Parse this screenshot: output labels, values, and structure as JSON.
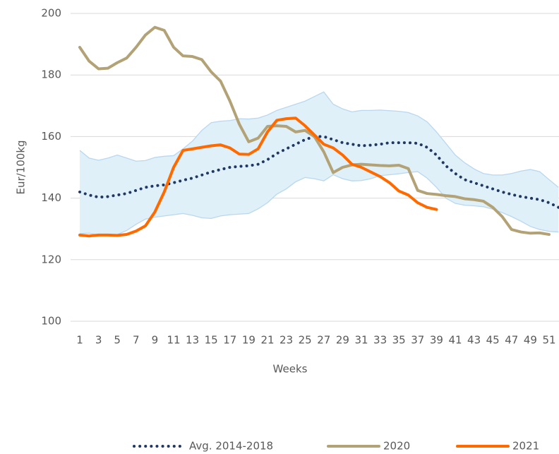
{
  "chart_data": {
    "type": "line",
    "y_label": "Eur/100kg",
    "x_label": "Weeks",
    "categories": [
      1,
      null,
      3,
      null,
      5,
      null,
      7,
      null,
      9,
      null,
      11,
      null,
      13,
      null,
      15,
      null,
      17,
      null,
      19,
      null,
      21,
      null,
      23,
      null,
      25,
      null,
      27,
      null,
      29,
      null,
      31,
      null,
      33,
      null,
      35,
      null,
      37,
      null,
      39,
      null,
      41,
      null,
      43,
      null,
      45,
      null,
      47,
      null,
      49,
      null,
      51,
      null
    ],
    "ylim": [
      100,
      200
    ],
    "yticks": [
      100,
      120,
      140,
      160,
      180,
      200
    ],
    "grid": true,
    "legend": "bottom",
    "band": {
      "color": "#dff0f8",
      "edge_color": "#b9d7ef",
      "upper": [
        155.5,
        153,
        152.3,
        153,
        154,
        153,
        152,
        152.2,
        153.2,
        153.6,
        153.8,
        156,
        158.5,
        162,
        164.5,
        165,
        165.2,
        165.8,
        165.7,
        166,
        167,
        168.5,
        169.5,
        170.5,
        171.5,
        173,
        174.5,
        170.5,
        169,
        168,
        168.5,
        168.5,
        168.6,
        168.4,
        168.2,
        167.8,
        166.7,
        164.8,
        161.5,
        157.8,
        154,
        151.5,
        149.5,
        148,
        147.5,
        147.5,
        148,
        148.8,
        149.3,
        148.6,
        146,
        143.5
      ],
      "lower": [
        128.5,
        128.6,
        128,
        128,
        128.2,
        129.5,
        131.5,
        133.2,
        133.8,
        134.2,
        134.6,
        135,
        134.4,
        133.6,
        133.4,
        134.2,
        134.6,
        134.8,
        135,
        136.5,
        138.5,
        141.3,
        143,
        145.3,
        146.7,
        146.3,
        145.6,
        147.6,
        146.3,
        145.6,
        145.7,
        146.3,
        147.3,
        147.6,
        147.9,
        148.3,
        148.6,
        146.5,
        143.5,
        140,
        138.3,
        137.7,
        137.5,
        137.2,
        136.4,
        135.3,
        134,
        132.5,
        130.8,
        129.8,
        129.2,
        129
      ]
    },
    "series": [
      {
        "name": "Avg. 2014-2018",
        "color": "#1f3864",
        "style": "dotted",
        "values": [
          142,
          141,
          140.3,
          140.5,
          141,
          141.5,
          142.5,
          143.5,
          144,
          144.3,
          145,
          145.8,
          146.5,
          147.5,
          148.5,
          149.3,
          150,
          150.3,
          150.5,
          151,
          152.5,
          154.5,
          156,
          157.5,
          159,
          160,
          160,
          159,
          158,
          157.5,
          157,
          157.2,
          157.5,
          158,
          158,
          158,
          157.8,
          156.5,
          154,
          150.5,
          148,
          146,
          145,
          144,
          143,
          142,
          141.2,
          140.5,
          140,
          139.5,
          138.5,
          137
        ]
      },
      {
        "name": "2020",
        "color": "#b3a276",
        "style": "solid",
        "values": [
          189,
          184.5,
          182,
          182.2,
          184,
          185.5,
          189,
          193,
          195.5,
          194.5,
          189,
          186.2,
          186,
          185,
          181,
          178,
          171.5,
          164,
          158.3,
          159.5,
          163.3,
          163.5,
          163.3,
          161.5,
          162,
          160,
          155,
          148.3,
          150,
          150.8,
          151,
          150.8,
          150.6,
          150.5,
          150.7,
          149.6,
          142.5,
          141.5,
          141.2,
          140.8,
          140.5,
          139.8,
          139.5,
          139,
          137,
          134,
          129.8,
          129,
          128.6,
          128.7,
          128.2,
          null
        ]
      },
      {
        "name": "2021",
        "color": "#ff6a00",
        "style": "solid",
        "values": [
          128,
          127.7,
          128,
          128,
          127.9,
          128.2,
          129.3,
          131,
          135.5,
          142,
          150,
          155.5,
          156,
          156.5,
          157,
          157.3,
          156.3,
          154.3,
          154.2,
          156,
          161.5,
          165.3,
          165.8,
          166,
          163.5,
          160.5,
          157.5,
          156.3,
          154,
          151,
          150,
          148.5,
          147,
          145,
          142.3,
          141,
          138.5,
          137,
          136.3,
          null,
          null,
          null,
          null,
          null,
          null,
          null,
          null,
          null,
          null,
          null,
          null,
          null
        ]
      }
    ]
  }
}
